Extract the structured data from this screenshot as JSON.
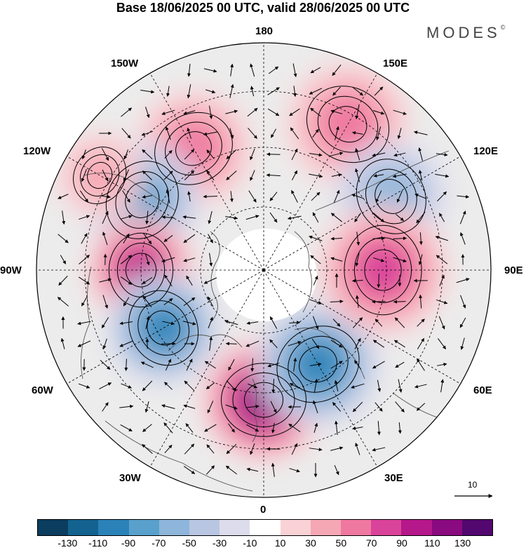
{
  "title": "Base 18/06/2025 00 UTC, valid 28/06/2025 00 UTC",
  "brand": "MODES",
  "brand_mark": "©",
  "longitudes": {
    "l180": "180",
    "l150e": "150E",
    "l120e": "120E",
    "l90e": "90E",
    "l60e": "60E",
    "l30e": "30E",
    "l0": "0",
    "l30w": "30W",
    "l60w": "60W",
    "l90w": "90W",
    "l120w": "120W",
    "l150w": "150W"
  },
  "wind_scale_label": "10",
  "colorbar": {
    "ticks": [
      "-130",
      "-110",
      "-90",
      "-70",
      "-50",
      "-30",
      "-10",
      "10",
      "30",
      "50",
      "70",
      "90",
      "110",
      "130"
    ],
    "colors": [
      "#0b3d5e",
      "#14628f",
      "#2b82b8",
      "#5aa0cc",
      "#8eb6da",
      "#b9c6e2",
      "#dcdcec",
      "#ffffff",
      "#f9d2d6",
      "#f6a7b4",
      "#ef78a0",
      "#d9439a",
      "#b5188a",
      "#8a0a7f",
      "#52086f"
    ]
  },
  "anomaly_centers": [
    {
      "sign": "positive",
      "value": 50,
      "near": "150E"
    },
    {
      "sign": "negative",
      "value": -50,
      "near": "120E"
    },
    {
      "sign": "positive",
      "value": 50,
      "near": "150W"
    },
    {
      "sign": "negative",
      "value": -70,
      "near": "120W"
    },
    {
      "sign": "positive",
      "value": 30,
      "near": "120W"
    },
    {
      "sign": "positive",
      "value": 90,
      "near": "90W"
    },
    {
      "sign": "negative",
      "value": -90,
      "near": "60W"
    },
    {
      "sign": "positive",
      "value": 110,
      "near": "0"
    },
    {
      "sign": "negative",
      "value": -90,
      "near": "30E"
    },
    {
      "sign": "positive",
      "value": 70,
      "near": "90E"
    }
  ]
}
